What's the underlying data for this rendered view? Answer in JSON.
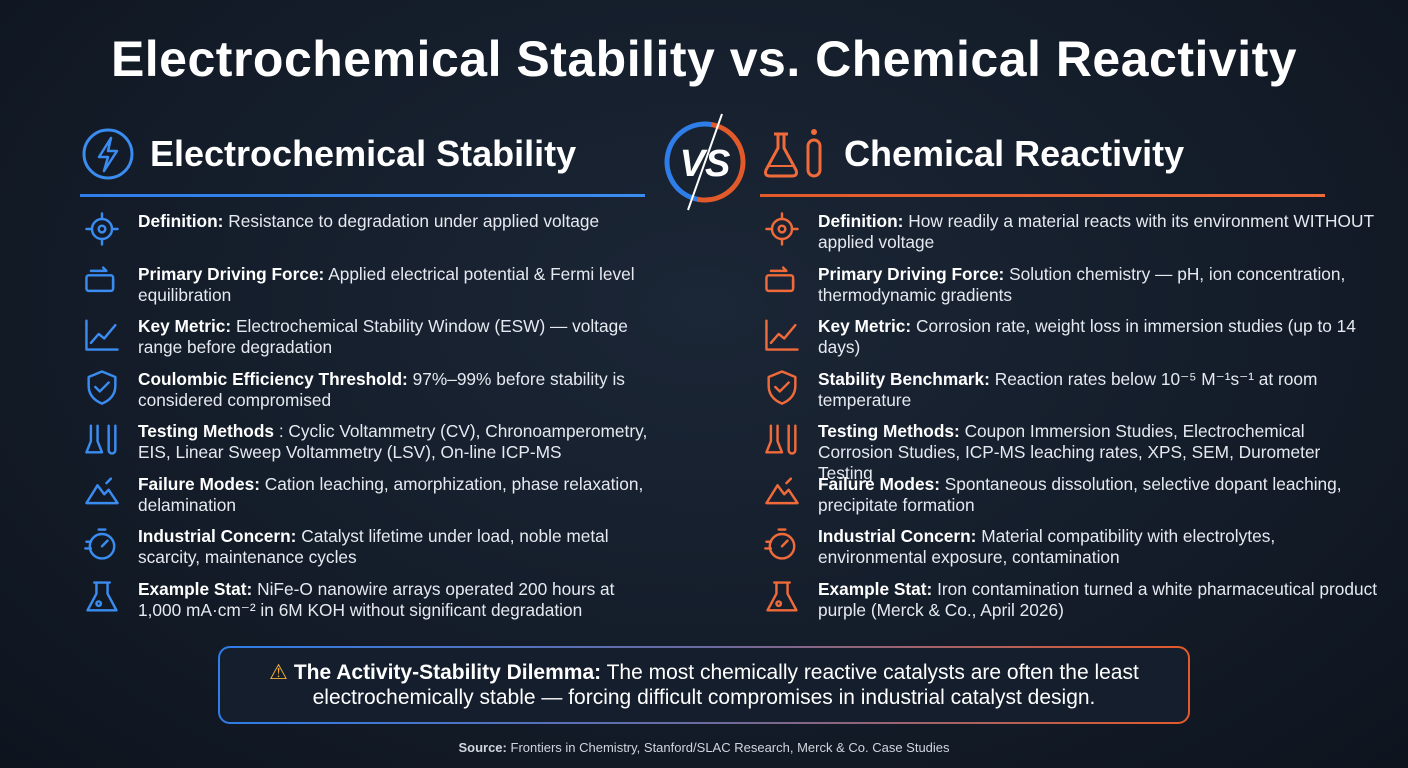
{
  "title": "Electrochemical Stability vs. Chemical Reactivity",
  "left": {
    "heading": "Electrochemical Stability",
    "items": [
      {
        "label": "Definition:",
        "text": "Resistance to degradation under applied voltage"
      },
      {
        "label": "Primary Driving Force:",
        "text": "Applied electrical potential & Fermi level equilibration"
      },
      {
        "label": "Key Metric:",
        "text": "Electrochemical Stability Window (ESW) — voltage range before degradation"
      },
      {
        "label": "Coulombic Efficiency Threshold:",
        "text": "97%–99% before stability is considered compromised"
      },
      {
        "label": "Testing Methods",
        "text": ": Cyclic Voltammetry (CV), Chronoamperometry, EIS, Linear Sweep Voltammetry (LSV), On-line ICP-MS"
      },
      {
        "label": "Failure Modes:",
        "text": "Cation leaching, amorphization, phase relaxation, delamination"
      },
      {
        "label": "Industrial Concern:",
        "text": "Catalyst lifetime under load, noble metal scarcity, maintenance cycles"
      },
      {
        "label": "Example Stat:",
        "text": "NiFe-O nanowire arrays operated 200 hours at 1,000 mA·cm⁻² in 6M KOH without significant degradation"
      }
    ]
  },
  "vs": "VS",
  "right": {
    "heading": "Chemical Reactivity",
    "items": [
      {
        "label": "Definition:",
        "text": "How readily a material reacts with its environment WITHOUT applied voltage"
      },
      {
        "label": "Primary Driving Force:",
        "text": "Solution chemistry — pH, ion concentration, thermodynamic gradients"
      },
      {
        "label": "Key Metric:",
        "text": "Corrosion rate, weight loss in immersion studies (up to 14 days)"
      },
      {
        "label": "Stability Benchmark:",
        "text": "Reaction rates below 10⁻⁵ M⁻¹s⁻¹ at room temperature"
      },
      {
        "label": "Testing Methods:",
        "text": "Coupon Immersion Studies, Electrochemical Corrosion Studies, ICP-MS leaching rates, XPS, SEM, Durometer Testing"
      },
      {
        "label": "Failure Modes:",
        "text": "Spontaneous dissolution, selective dopant leaching, precipitate formation"
      },
      {
        "label": "Industrial Concern:",
        "text": "Material compatibility with electrolytes, environmental exposure, contamination"
      },
      {
        "label": "Example Stat:",
        "text": "Iron contamination turned a white pharmaceutical product purple (Merck & Co., April 2026)"
      }
    ]
  },
  "callout": {
    "label": "The Activity-Stability Dilemma:",
    "text": "The most chemically reactive catalysts are often the least electrochemically stable — forcing difficult compromises in industrial catalyst design."
  },
  "source": {
    "label": "Source:",
    "text": "Frontiers in Chemistry, Stanford/SLAC Research, Merck & Co. Case Studies"
  }
}
